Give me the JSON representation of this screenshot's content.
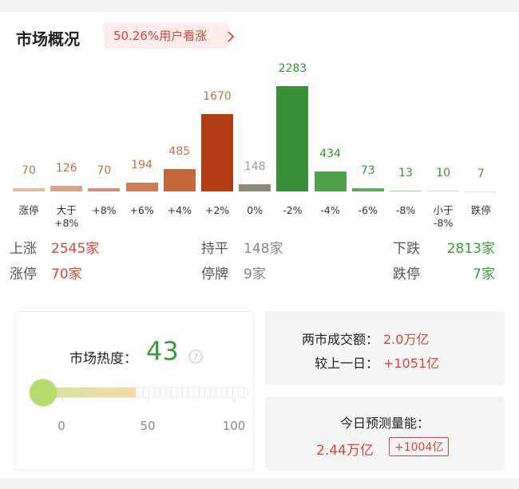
{
  "header": {
    "title": "市场概况",
    "badge": "50.26%用户看涨"
  },
  "chart_data": {
    "type": "bar",
    "categories": [
      "涨停",
      "大于\n+8%",
      "+8%",
      "+6%",
      "+4%",
      "+2%",
      "0%",
      "-2%",
      "-4%",
      "-6%",
      "-8%",
      "小于\n-8%",
      "跌停"
    ],
    "values": [
      70,
      126,
      70,
      194,
      485,
      1670,
      148,
      2283,
      434,
      73,
      13,
      10,
      7
    ],
    "colors": [
      "#e9b8a0",
      "#dba283",
      "#d58e70",
      "#cf7b55",
      "#c4673c",
      "#b23d15",
      "#8b8a74",
      "#3c8f39",
      "#4fa14a",
      "#5eab57",
      "#a3cf9c",
      "#c6e2c2",
      "#dcebd9"
    ],
    "value_label_colors": [
      "#b9734c",
      "#b9734c",
      "#b9734c",
      "#b9734c",
      "#b9734c",
      "#b9734c",
      "#999999",
      "#3c8f39",
      "#3c8f39",
      "#3c8f39",
      "#3c8f39",
      "#3c8f39",
      "#3c8f39"
    ]
  },
  "stats": [
    [
      {
        "label": "上涨",
        "value": "2545家"
      },
      {
        "label": "持平",
        "value": "148家"
      },
      {
        "label": "下跌",
        "value": "2813家"
      }
    ],
    [
      {
        "label": "涨停",
        "value": "70家"
      },
      {
        "label": "停牌",
        "value": "9家"
      },
      {
        "label": "跌停",
        "value": "7家"
      }
    ]
  ],
  "heat": {
    "label": "市场热度：",
    "value": 43,
    "xlim": [
      0,
      100
    ],
    "xticks": [
      0,
      50,
      100
    ]
  },
  "turnover": {
    "label": "两市成交额：",
    "value": "2.0万亿",
    "change_label": "较上一日：",
    "change": "+1051亿"
  },
  "forecast": {
    "label": "今日预测量能：",
    "value": "2.44万亿",
    "change": "+1004亿"
  }
}
